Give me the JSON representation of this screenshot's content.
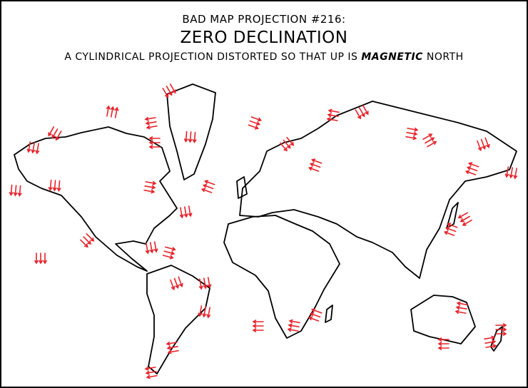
{
  "comic": {
    "kicker": "BAD MAP PROJECTION #216:",
    "title": "ZERO DECLINATION",
    "subtitle_prefix": "A CYLINDRICAL PROJECTION DISTORTED SO THAT UP IS",
    "subtitle_emphasis": "MAGNETIC",
    "subtitle_suffix": "NORTH"
  },
  "map": {
    "projection": "cylindrical, distorted so that up is magnetic north",
    "land_outline_color": "#000000",
    "arrow_color": "#e8222a",
    "arrow_meaning": "compass needle direction (magnetic north)"
  }
}
